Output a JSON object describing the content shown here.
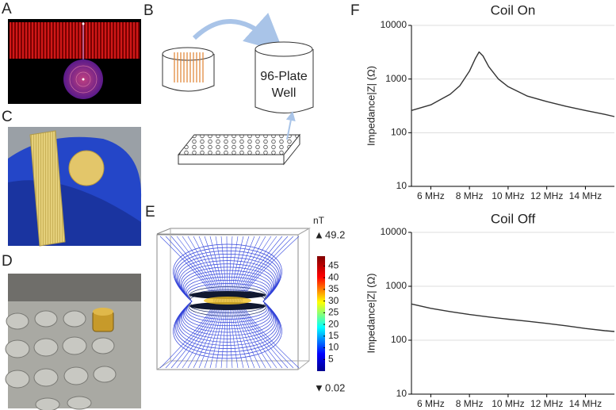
{
  "panel_labels": [
    "A",
    "B",
    "C",
    "D",
    "E",
    "F"
  ],
  "diagram": {
    "well_label": [
      "96-Plate",
      "Well"
    ]
  },
  "colorbar": {
    "unit": "nT",
    "max": 49.2,
    "min": 0.02,
    "ticks": [
      45,
      40,
      35,
      30,
      25,
      20,
      15,
      10,
      5
    ]
  },
  "chart_data": [
    {
      "type": "line",
      "title": "Coil On",
      "y_label": "Impedance|Z| (Ω)",
      "log_y": true,
      "grid": true,
      "color": "#333333",
      "x": [
        5,
        6,
        7,
        7.5,
        8,
        8.3,
        8.5,
        8.7,
        9,
        9.5,
        10,
        11,
        12,
        13,
        14,
        15,
        15.5
      ],
      "values": [
        260,
        330,
        520,
        750,
        1400,
        2400,
        3200,
        2700,
        1700,
        1000,
        720,
        480,
        380,
        310,
        260,
        220,
        200
      ],
      "xlim": [
        5,
        15.5
      ],
      "ylim": [
        10,
        10000
      ],
      "xticks": [
        {
          "value": 6,
          "label": "6 MHz"
        },
        {
          "value": 8,
          "label": "8 MHz"
        },
        {
          "value": 10,
          "label": "10 MHz"
        },
        {
          "value": 12,
          "label": "12 MHz"
        },
        {
          "value": 14,
          "label": "14 MHz"
        }
      ],
      "yticks": [
        10,
        100,
        1000,
        10000
      ]
    },
    {
      "type": "line",
      "title": "Coil Off",
      "y_label": "Impedance|Z| (Ω)",
      "log_y": true,
      "grid": true,
      "color": "#333333",
      "x": [
        5,
        6,
        7,
        8,
        9,
        10,
        11,
        12,
        13,
        14,
        15,
        15.5
      ],
      "values": [
        470,
        390,
        340,
        300,
        270,
        245,
        225,
        205,
        185,
        165,
        150,
        145
      ],
      "xlim": [
        5,
        15.5
      ],
      "ylim": [
        10,
        10000
      ],
      "xticks": [
        {
          "value": 6,
          "label": "6 MHz"
        },
        {
          "value": 8,
          "label": "8 MHz"
        },
        {
          "value": 10,
          "label": "10 MHz"
        },
        {
          "value": 12,
          "label": "12 MHz"
        },
        {
          "value": 14,
          "label": "14 MHz"
        }
      ],
      "yticks": [
        10,
        100,
        1000,
        10000
      ]
    }
  ]
}
